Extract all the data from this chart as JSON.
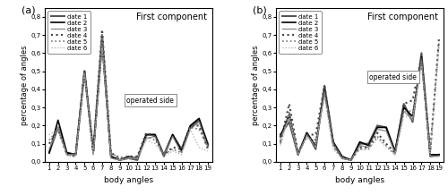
{
  "x": [
    1,
    2,
    3,
    4,
    5,
    6,
    7,
    8,
    9,
    10,
    11,
    12,
    13,
    14,
    15,
    16,
    17,
    18,
    19
  ],
  "panel_a": {
    "date1": [
      0.05,
      0.19,
      0.05,
      0.04,
      0.5,
      0.06,
      0.7,
      0.03,
      0.01,
      0.02,
      0.01,
      0.15,
      0.15,
      0.03,
      0.15,
      0.07,
      0.19,
      0.23,
      0.1
    ],
    "date2": [
      0.05,
      0.23,
      0.05,
      0.04,
      0.5,
      0.05,
      0.65,
      0.03,
      0.01,
      0.03,
      0.02,
      0.15,
      0.15,
      0.04,
      0.15,
      0.06,
      0.2,
      0.24,
      0.09
    ],
    "date3": [
      0.07,
      0.19,
      0.04,
      0.04,
      0.5,
      0.04,
      0.65,
      0.02,
      0.01,
      0.02,
      0.02,
      0.13,
      0.14,
      0.04,
      0.14,
      0.05,
      0.18,
      0.22,
      0.08
    ],
    "date4": [
      0.1,
      0.18,
      0.04,
      0.03,
      0.5,
      0.05,
      0.73,
      0.05,
      0.02,
      0.03,
      0.03,
      0.16,
      0.14,
      0.04,
      0.08,
      0.07,
      0.2,
      0.2,
      0.07
    ],
    "date5": [
      0.12,
      0.18,
      0.04,
      0.03,
      0.48,
      0.05,
      0.7,
      0.05,
      0.02,
      0.03,
      0.02,
      0.14,
      0.12,
      0.04,
      0.07,
      0.05,
      0.19,
      0.18,
      0.08
    ],
    "date6": [
      0.15,
      0.18,
      0.04,
      0.03,
      0.48,
      0.04,
      0.63,
      0.04,
      0.01,
      0.02,
      0.02,
      0.12,
      0.1,
      0.03,
      0.06,
      0.04,
      0.18,
      0.08,
      0.06
    ]
  },
  "panel_b": {
    "date1": [
      0.15,
      0.22,
      0.04,
      0.16,
      0.07,
      0.42,
      0.1,
      0.02,
      0.01,
      0.1,
      0.1,
      0.2,
      0.19,
      0.05,
      0.32,
      0.22,
      0.6,
      0.03,
      0.04
    ],
    "date2": [
      0.14,
      0.26,
      0.04,
      0.16,
      0.09,
      0.4,
      0.11,
      0.03,
      0.01,
      0.11,
      0.09,
      0.19,
      0.19,
      0.06,
      0.3,
      0.25,
      0.58,
      0.04,
      0.04
    ],
    "date3": [
      0.13,
      0.24,
      0.04,
      0.15,
      0.08,
      0.39,
      0.1,
      0.02,
      0.01,
      0.09,
      0.08,
      0.18,
      0.17,
      0.05,
      0.28,
      0.23,
      0.57,
      0.03,
      0.03
    ],
    "date4": [
      0.11,
      0.32,
      0.05,
      0.15,
      0.15,
      0.42,
      0.1,
      0.03,
      0.01,
      0.08,
      0.08,
      0.16,
      0.1,
      0.05,
      0.32,
      0.34,
      0.58,
      0.06,
      0.69
    ],
    "date5": [
      0.1,
      0.28,
      0.05,
      0.14,
      0.12,
      0.38,
      0.08,
      0.02,
      0.01,
      0.07,
      0.07,
      0.14,
      0.09,
      0.04,
      0.28,
      0.28,
      0.55,
      0.06,
      0.67
    ],
    "date6": [
      0.09,
      0.26,
      0.04,
      0.13,
      0.1,
      0.35,
      0.07,
      0.02,
      0.01,
      0.07,
      0.07,
      0.13,
      0.08,
      0.04,
      0.25,
      0.25,
      0.53,
      0.05,
      0.65
    ]
  },
  "colors": {
    "date1": "#555555",
    "date2": "#000000",
    "date3": "#888888",
    "date4": "#444444",
    "date5": "#777777",
    "date6": "#aaaaaa"
  },
  "linestyles": {
    "date1": "-",
    "date2": "-",
    "date3": "-",
    "date4": ":",
    "date5": ":",
    "date6": ":"
  },
  "linewidths": {
    "date1": 1.5,
    "date2": 1.2,
    "date3": 0.9,
    "date4": 1.5,
    "date5": 1.2,
    "date6": 0.9
  },
  "xlabel": "body angles",
  "ylabel": "percentage of angles",
  "title": "First component",
  "operated_side_label": "operated side",
  "ylim": [
    0.0,
    0.85
  ],
  "yticks": [
    0.0,
    0.1,
    0.2,
    0.3,
    0.4,
    0.5,
    0.6,
    0.7,
    0.8
  ],
  "ytick_labels": [
    "0,0",
    "0,1",
    "0,2",
    "0,3",
    "0,4",
    "0,5",
    "0,6",
    "0,7",
    "0,8"
  ],
  "legend_labels": [
    "date 1",
    "date 2",
    "date 3",
    "date 4",
    "date 5",
    "date 6"
  ]
}
